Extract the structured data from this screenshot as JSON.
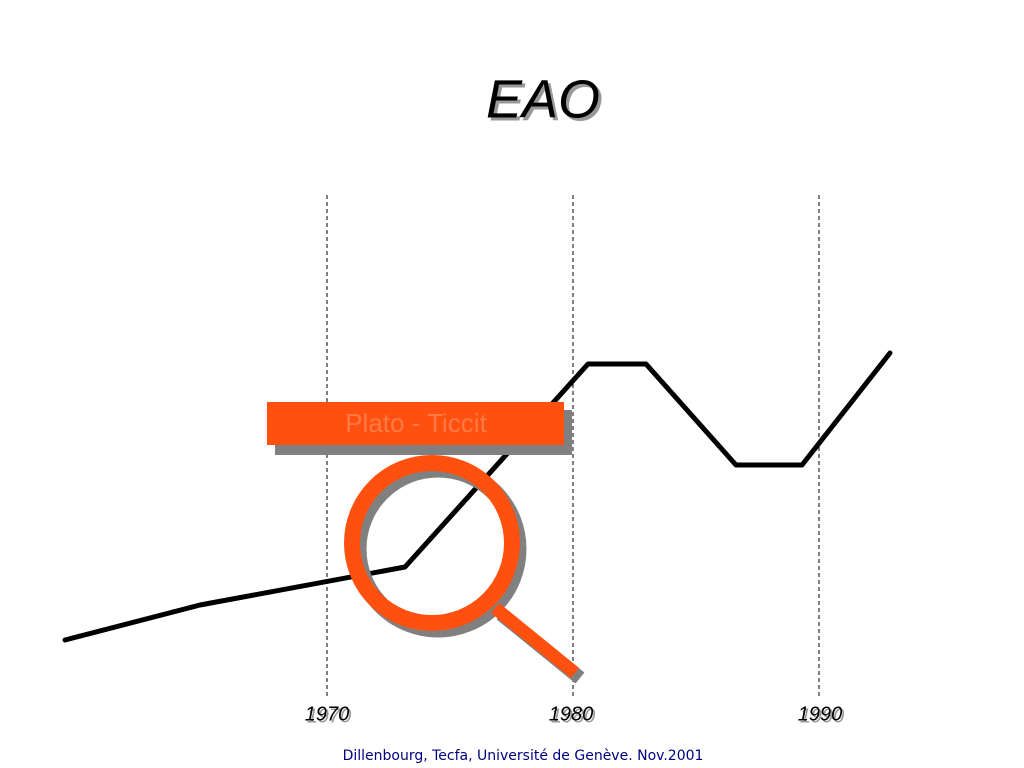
{
  "title": "EAO",
  "timeline": {
    "labels": [
      "1970",
      "1980",
      "1990"
    ]
  },
  "callout": {
    "label": "Plato - Ticcit"
  },
  "footer": "Dillenbourg, Tecfa, Université de Genève. Nov.2001"
}
